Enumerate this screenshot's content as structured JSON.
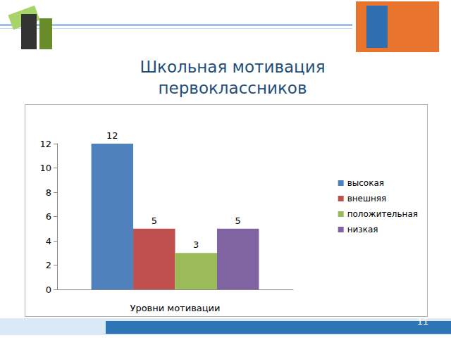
{
  "chart_data": {
    "type": "bar",
    "title": "Школьная мотивация первоклассников",
    "xlabel": "Уровни мотивации",
    "categories": [
      null
    ],
    "series": [
      {
        "name": "высокая",
        "color": "#4f81bd",
        "values": [
          12
        ]
      },
      {
        "name": "внешняя",
        "color": "#c0504d",
        "values": [
          5
        ]
      },
      {
        "name": "положительная",
        "color": "#9bbb59",
        "values": [
          3
        ]
      },
      {
        "name": "низкая",
        "color": "#8064a2",
        "values": [
          5
        ]
      }
    ],
    "ylim": [
      0,
      12
    ],
    "yticks": [
      0,
      2,
      4,
      6,
      8,
      10,
      12
    ],
    "grid": false,
    "legend": "right",
    "data_labels": true
  },
  "page": 11
}
